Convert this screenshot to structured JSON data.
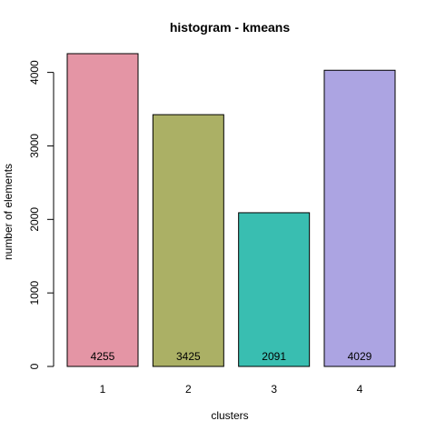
{
  "chart_data": {
    "type": "bar",
    "title": "histogram - kmeans",
    "xlabel": "clusters",
    "ylabel": "number of elements",
    "categories": [
      "1",
      "2",
      "3",
      "4"
    ],
    "values": [
      4255,
      3425,
      2091,
      4029
    ],
    "data_labels": [
      "4255",
      "3425",
      "2091",
      "4029"
    ],
    "ylim": [
      0,
      4255
    ],
    "y_ticks": [
      0,
      1000,
      2000,
      3000,
      4000
    ],
    "y_tick_labels": [
      "0",
      "1000",
      "2000",
      "3000",
      "4000"
    ],
    "colors": [
      "#e495a5",
      "#abb065",
      "#39beb1",
      "#aca4e2"
    ],
    "grid": false,
    "legend": "none"
  }
}
